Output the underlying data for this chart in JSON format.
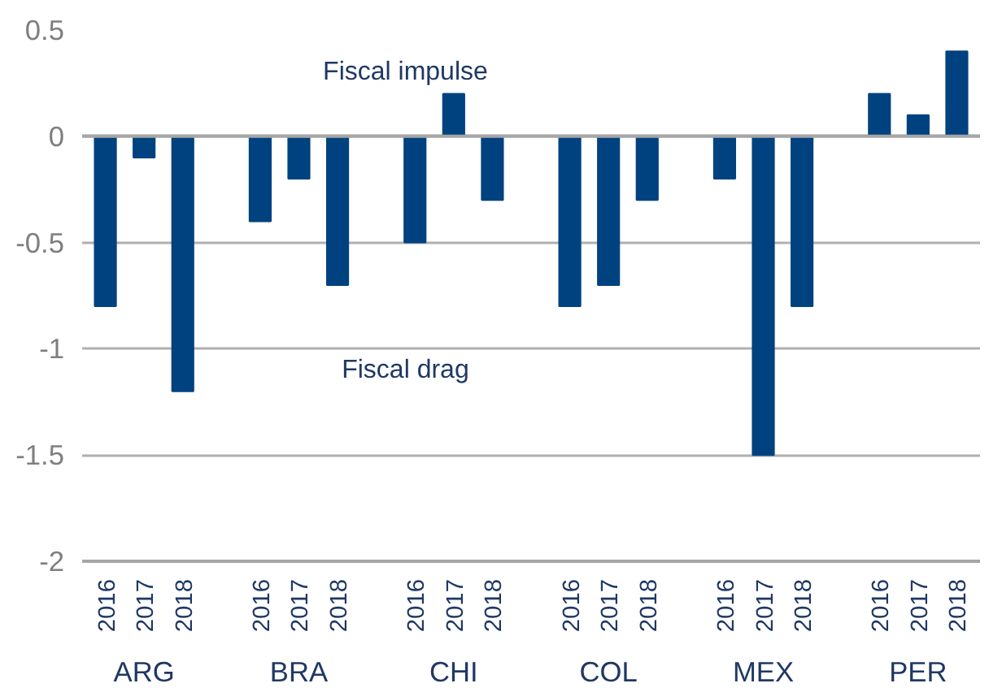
{
  "chart_data": {
    "type": "bar",
    "categories": [
      "2016",
      "2017",
      "2018",
      null,
      "2016",
      "2017",
      "2018",
      null,
      "2016",
      "2017",
      "2018",
      null,
      "2016",
      "2017",
      "2018",
      null,
      "2016",
      "2017",
      "2018",
      null,
      "2016",
      "2017",
      "2018"
    ],
    "values": [
      -0.8,
      -0.1,
      -1.2,
      null,
      -0.4,
      -0.2,
      -0.7,
      null,
      -0.5,
      0.2,
      -0.3,
      null,
      -0.8,
      -0.7,
      -0.3,
      null,
      -0.2,
      -1.5,
      -0.8,
      null,
      0.2,
      0.1,
      0.4
    ],
    "color": "#00427f",
    "ylim": [
      -2,
      0.5
    ],
    "yticks": [
      -2,
      -1.5,
      -1,
      -0.5,
      0,
      0.5
    ],
    "grid": "y",
    "ref_lines": [
      {
        "axis": "y",
        "value": 0,
        "label": null
      }
    ],
    "annotations": [
      "Fiscal impulse",
      "Fiscal drag",
      "ARG",
      "BRA",
      "CHI",
      "COL",
      "MEX",
      "PER"
    ]
  }
}
